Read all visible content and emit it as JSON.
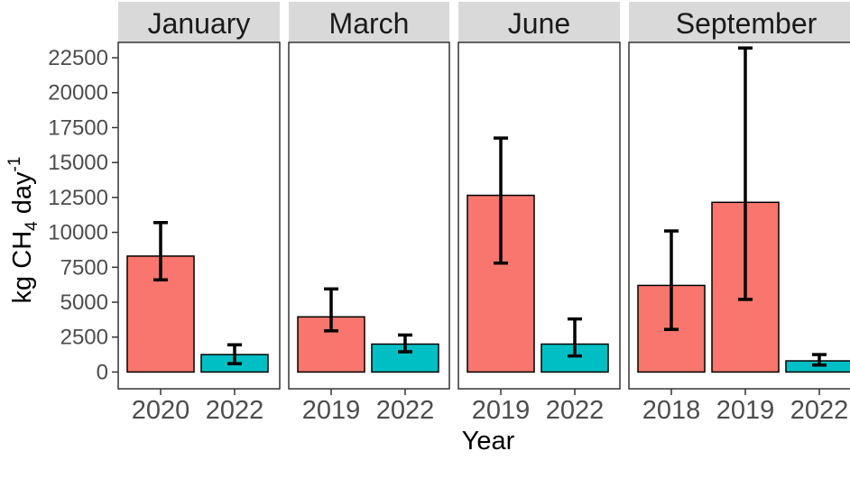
{
  "chart_data": {
    "type": "bar",
    "xlabel": "Year",
    "ylabel_parts": {
      "pre": "kg CH",
      "sub": "4",
      "mid": " day",
      "sup": "-1"
    },
    "ylim": [
      -1200,
      23600
    ],
    "yticks": [
      0,
      2500,
      5000,
      7500,
      10000,
      12500,
      15000,
      17500,
      20000,
      22500
    ],
    "colors": {
      "2018-2019-2020": "#F8766D",
      "2022": "#00BFC4",
      "strip": "#D9D9D9"
    },
    "panels": [
      {
        "name": "January",
        "bars": [
          {
            "year": "2020",
            "value": 8300,
            "lower": 6600,
            "upper": 10700,
            "color": "#F8766D"
          },
          {
            "year": "2022",
            "value": 1250,
            "lower": 600,
            "upper": 1950,
            "color": "#00BFC4"
          }
        ]
      },
      {
        "name": "March",
        "bars": [
          {
            "year": "2019",
            "value": 3950,
            "lower": 2950,
            "upper": 5950,
            "color": "#F8766D"
          },
          {
            "year": "2022",
            "value": 2000,
            "lower": 1450,
            "upper": 2650,
            "color": "#00BFC4"
          }
        ]
      },
      {
        "name": "June",
        "bars": [
          {
            "year": "2019",
            "value": 12650,
            "lower": 7800,
            "upper": 16750,
            "color": "#F8766D"
          },
          {
            "year": "2022",
            "value": 2000,
            "lower": 1150,
            "upper": 3800,
            "color": "#00BFC4"
          }
        ]
      },
      {
        "name": "September",
        "bars": [
          {
            "year": "2018",
            "value": 6200,
            "lower": 3050,
            "upper": 10100,
            "color": "#F8766D"
          },
          {
            "year": "2019",
            "value": 12150,
            "lower": 5200,
            "upper": 23200,
            "color": "#F8766D"
          },
          {
            "year": "2022",
            "value": 800,
            "lower": 500,
            "upper": 1250,
            "color": "#00BFC4"
          }
        ]
      }
    ]
  }
}
